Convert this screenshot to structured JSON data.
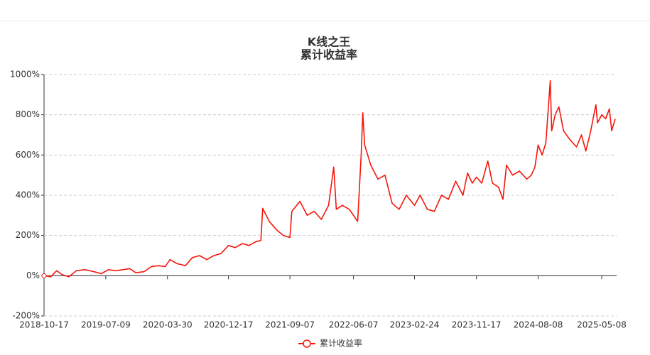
{
  "chart_data": {
    "type": "line",
    "title": "K线之王",
    "subtitle": "累计收益率",
    "x": [
      "2018-10-17",
      "2018-11-15",
      "2018-12-10",
      "2019-01-03",
      "2019-02-01",
      "2019-03-05",
      "2019-04-10",
      "2019-05-20",
      "2019-06-20",
      "2019-07-20",
      "2019-08-20",
      "2019-09-20",
      "2019-10-20",
      "2019-11-15",
      "2019-12-20",
      "2020-01-20",
      "2020-02-20",
      "2020-03-20",
      "2020-04-10",
      "2020-05-10",
      "2020-06-15",
      "2020-07-15",
      "2020-08-15",
      "2020-09-15",
      "2020-10-15",
      "2020-11-15",
      "2020-12-17",
      "2021-01-15",
      "2021-02-15",
      "2021-03-15",
      "2021-04-15",
      "2021-05-05",
      "2021-05-13",
      "2021-06-10",
      "2021-07-10",
      "2021-08-10",
      "2021-09-07",
      "2021-09-15",
      "2021-10-20",
      "2021-11-20",
      "2021-12-20",
      "2022-01-20",
      "2022-02-20",
      "2022-03-14",
      "2022-03-25",
      "2022-04-20",
      "2022-05-20",
      "2022-06-25",
      "2022-07-10",
      "2022-07-17",
      "2022-07-25",
      "2022-08-20",
      "2022-09-20",
      "2022-10-20",
      "2022-11-20",
      "2022-12-20",
      "2023-01-20",
      "2023-02-24",
      "2023-03-20",
      "2023-04-20",
      "2023-05-20",
      "2023-06-20",
      "2023-07-20",
      "2023-08-20",
      "2023-09-20",
      "2023-10-10",
      "2023-10-30",
      "2023-11-17",
      "2023-12-10",
      "2024-01-05",
      "2024-01-25",
      "2024-02-20",
      "2024-03-10",
      "2024-03-25",
      "2024-04-20",
      "2024-05-20",
      "2024-06-20",
      "2024-07-10",
      "2024-07-25",
      "2024-08-08",
      "2024-08-25",
      "2024-09-10",
      "2024-09-29",
      "2024-10-05",
      "2024-10-20",
      "2024-11-05",
      "2024-11-25",
      "2024-12-20",
      "2025-01-20",
      "2025-02-10",
      "2025-03-01",
      "2025-03-20",
      "2025-04-13",
      "2025-04-20",
      "2025-05-08",
      "2025-05-25",
      "2025-06-10",
      "2025-06-20",
      "2025-07-05"
    ],
    "series": [
      {
        "name": "累计收益率",
        "color": "#f5160c",
        "values": [
          0,
          -5,
          25,
          5,
          -5,
          25,
          30,
          20,
          10,
          30,
          25,
          30,
          35,
          15,
          20,
          45,
          50,
          45,
          80,
          60,
          50,
          90,
          100,
          80,
          100,
          110,
          150,
          140,
          160,
          150,
          170,
          175,
          335,
          270,
          230,
          200,
          190,
          320,
          370,
          300,
          320,
          280,
          350,
          540,
          330,
          350,
          330,
          270,
          600,
          810,
          650,
          550,
          480,
          500,
          360,
          330,
          400,
          350,
          400,
          330,
          320,
          400,
          380,
          470,
          400,
          510,
          460,
          490,
          460,
          570,
          460,
          440,
          380,
          550,
          500,
          520,
          480,
          500,
          540,
          650,
          600,
          660,
          970,
          720,
          800,
          840,
          720,
          680,
          640,
          700,
          620,
          710,
          850,
          760,
          800,
          780,
          830,
          720,
          780
        ]
      }
    ],
    "xlim": [
      "2018-10-17",
      "2025-07-11"
    ],
    "xticks": [
      "2018-10-17",
      "2019-07-09",
      "2020-03-30",
      "2020-12-17",
      "2021-09-07",
      "2022-06-07",
      "2023-02-24",
      "2023-11-17",
      "2024-08-08",
      "2025-05-08"
    ],
    "ylim": [
      -200,
      1000
    ],
    "yticks": [
      {
        "value": -200,
        "label": "-200%"
      },
      {
        "value": 0,
        "label": "0%"
      },
      {
        "value": 200,
        "label": "200%"
      },
      {
        "value": 400,
        "label": "400%"
      },
      {
        "value": 600,
        "label": "600%"
      },
      {
        "value": 800,
        "label": "800%"
      },
      {
        "value": 1000,
        "label": "1000%"
      }
    ],
    "grid": true,
    "legend": "bottom"
  }
}
